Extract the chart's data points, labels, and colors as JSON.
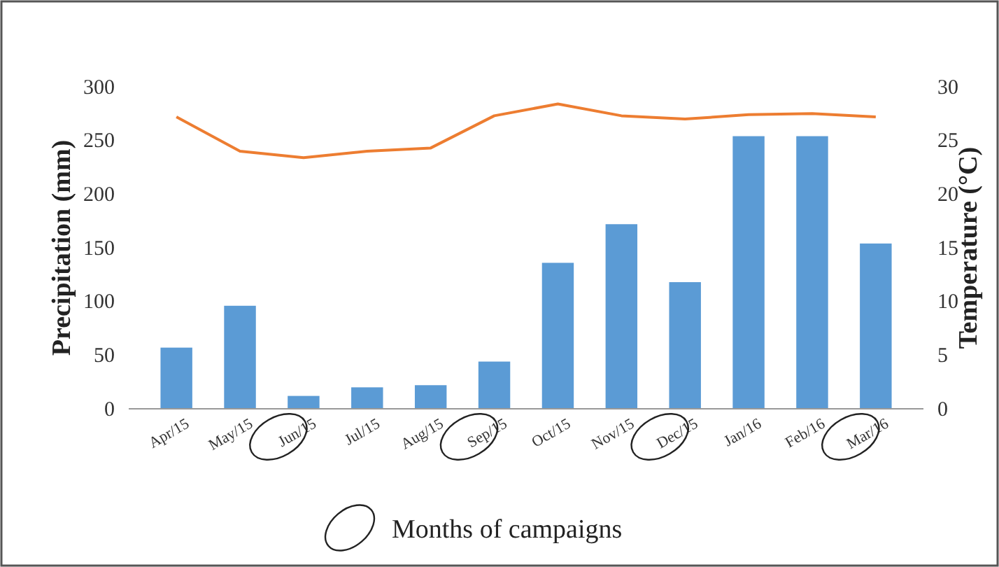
{
  "chart_data": {
    "type": "bar",
    "ylabel": "Precipitation (mm)",
    "y2label": "Temperature (°C)",
    "categories": [
      "Apr/15",
      "May/15",
      "Jun/15",
      "Jul/15",
      "Aug/15",
      "Sep/15",
      "Oct/15",
      "Nov/15",
      "Dec/15",
      "Jan/16",
      "Feb/16",
      "Mar/16"
    ],
    "series": [
      {
        "color": "#5b9bd5",
        "values": [
          57,
          96,
          12,
          20,
          22,
          44,
          136,
          172,
          118,
          254,
          254,
          154
        ]
      },
      {
        "type": "line",
        "axis": "y2",
        "color": "#ed7d31",
        "values": [
          27.2,
          24,
          23.4,
          24,
          24.3,
          27.3,
          28.4,
          27.3,
          27,
          27.4,
          27.5,
          27.2
        ]
      }
    ],
    "ylim": [
      0,
      300
    ],
    "yticks": [
      0,
      50,
      100,
      150,
      200,
      250,
      300
    ],
    "y2lim": [
      0,
      30
    ],
    "y2ticks": [
      0,
      5,
      10,
      15,
      20,
      25,
      30
    ],
    "grid": false,
    "annotations": [
      "Months of campaigns"
    ]
  }
}
